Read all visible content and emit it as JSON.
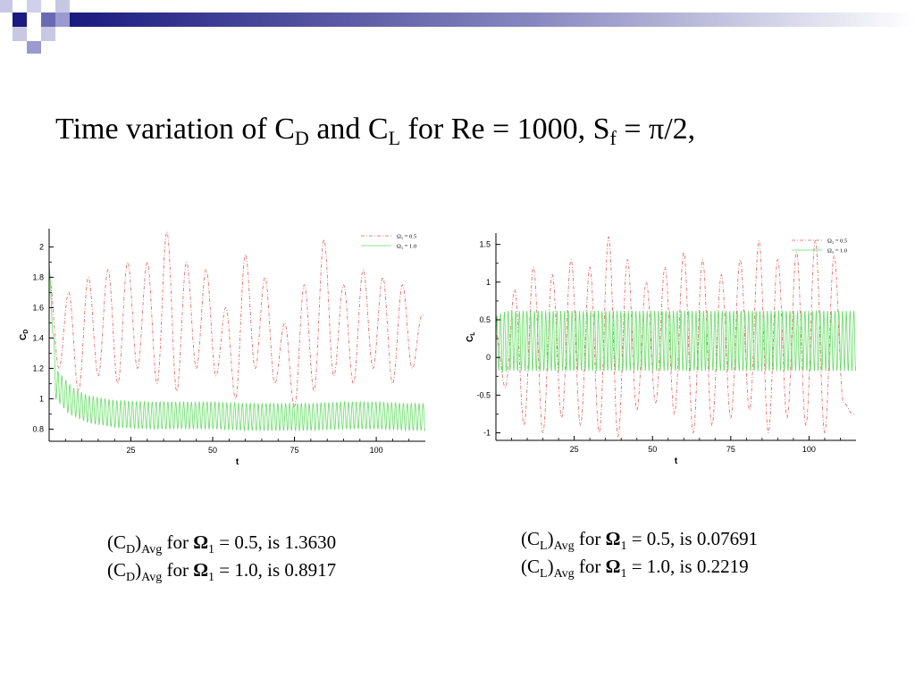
{
  "title": {
    "prefix": "Time variation of ",
    "cd": "C",
    "cd_sub": "D",
    "and": " and C",
    "cl_sub": "L",
    "for_re": " for Re = 1000, S",
    "sf_sub": "f",
    "suffix": " = π/2,"
  },
  "stats": {
    "cd": [
      {
        "open": "(C",
        "sub1": "D",
        "close": ")",
        "sub2": "Avg",
        "for": " for ",
        "omega": "Ω",
        "osub": "1",
        "rest": " = 0.5, is 1.3630"
      },
      {
        "open": "(C",
        "sub1": "D",
        "close": ")",
        "sub2": "Avg",
        "for": " for ",
        "omega": "Ω",
        "osub": "1",
        "rest": " = 1.0, is 0.8917"
      }
    ],
    "cl": [
      {
        "open": "(C",
        "sub1": "L",
        "close": ")",
        "sub2": "Avg",
        "for": " for ",
        "omega": "Ω",
        "osub": "1",
        "rest": " = 0.5, is 0.07691"
      },
      {
        "open": "(C",
        "sub1": "L",
        "close": ")",
        "sub2": "Avg",
        "for": " for ",
        "omega": "Ω",
        "osub": "1",
        "rest": " = 1.0, is 0.2219"
      }
    ]
  },
  "colors": {
    "series1": "#e06060",
    "series2": "#66dd66",
    "deco_dark": "#1a1a80",
    "deco_light": "#9a9ad0"
  },
  "chart_data": [
    {
      "type": "line",
      "xlabel": "t",
      "ylabel": "C",
      "ylabel_sub": "D",
      "xlim": [
        0,
        115
      ],
      "ylim": [
        0.72,
        2.12
      ],
      "xticks": [
        25,
        50,
        75,
        100
      ],
      "yticks": [
        0.8,
        1,
        1.2,
        1.4,
        1.6,
        1.8,
        2
      ],
      "xtick_labels": [
        "25",
        "50",
        "75",
        "100"
      ],
      "ytick_labels": [
        "0.8",
        "1",
        "1.2",
        "1.4",
        "1.6",
        "1.8",
        "2"
      ],
      "legend_position": "top-right",
      "series": [
        {
          "name_prefix": "Ω",
          "name_sub": "1",
          "name_suffix": " = 0.5",
          "style": "dashdot",
          "x": [
            0,
            3,
            6,
            9,
            12,
            15,
            18,
            21,
            24,
            27,
            30,
            33,
            36,
            39,
            42,
            45,
            48,
            51,
            54,
            57,
            60,
            63,
            66,
            69,
            72,
            75,
            78,
            81,
            84,
            87,
            90,
            93,
            96,
            99,
            102,
            105,
            108,
            111,
            114
          ],
          "y": [
            1.8,
            1.2,
            1.7,
            1.05,
            1.8,
            1.15,
            1.85,
            1.1,
            1.9,
            1.2,
            1.9,
            1.1,
            2.1,
            1.05,
            1.9,
            1.2,
            1.85,
            1.15,
            1.6,
            1.0,
            1.95,
            1.2,
            1.8,
            1.1,
            1.5,
            0.95,
            1.75,
            1.05,
            2.05,
            1.15,
            1.75,
            1.1,
            1.85,
            1.2,
            1.8,
            1.1,
            1.75,
            1.2,
            1.55
          ]
        },
        {
          "name_prefix": "Ω",
          "name_sub": "1",
          "name_suffix": " = 1.0",
          "style": "solid",
          "x": [
            0,
            2,
            4,
            6,
            8,
            10,
            12,
            15,
            20,
            30,
            40,
            50,
            60,
            70,
            80,
            90,
            100,
            110,
            114
          ],
          "y": [
            1.9,
            1.1,
            1.05,
            1.0,
            0.97,
            0.95,
            0.93,
            0.92,
            0.9,
            0.89,
            0.89,
            0.89,
            0.88,
            0.88,
            0.88,
            0.89,
            0.89,
            0.88,
            0.88
          ],
          "amplitude": [
            0,
            0.1,
            0.1,
            0.1,
            0.09,
            0.09,
            0.09,
            0.09,
            0.09,
            0.09,
            0.09,
            0.09,
            0.09,
            0.09,
            0.09,
            0.09,
            0.09,
            0.09,
            0.09
          ],
          "period": 1.2
        }
      ]
    },
    {
      "type": "line",
      "xlabel": "t",
      "ylabel": "C",
      "ylabel_sub": "L",
      "xlim": [
        0,
        115
      ],
      "ylim": [
        -1.1,
        1.65
      ],
      "xticks": [
        25,
        50,
        75,
        100
      ],
      "yticks": [
        -1,
        -0.5,
        0,
        0.5,
        1,
        1.5
      ],
      "xtick_labels": [
        "25",
        "50",
        "75",
        "100"
      ],
      "ytick_labels": [
        "-1",
        "-0.5",
        "0",
        "0.5",
        "1",
        "1.5"
      ],
      "legend_position": "top-right",
      "series": [
        {
          "name_prefix": "Ω",
          "name_sub": "1",
          "name_suffix": " = 0.5",
          "style": "dashdot",
          "x": [
            0,
            3,
            6,
            9,
            12,
            15,
            18,
            21,
            24,
            27,
            30,
            33,
            36,
            39,
            42,
            45,
            48,
            51,
            54,
            57,
            60,
            63,
            66,
            69,
            72,
            75,
            78,
            81,
            84,
            87,
            90,
            93,
            96,
            99,
            102,
            105,
            108,
            111,
            114
          ],
          "y": [
            0.3,
            -0.4,
            0.9,
            -0.9,
            1.2,
            -1.0,
            1.1,
            -0.8,
            1.3,
            -0.9,
            1.2,
            -1.0,
            1.6,
            -1.05,
            1.3,
            -0.7,
            1.0,
            -0.6,
            1.2,
            -0.75,
            1.4,
            -1.0,
            1.3,
            -0.9,
            1.1,
            -0.8,
            1.3,
            -0.7,
            1.55,
            -1.0,
            1.3,
            -0.8,
            1.4,
            -0.9,
            1.55,
            -1.0,
            1.35,
            -0.6,
            -0.75
          ]
        },
        {
          "name_prefix": "Ω",
          "name_sub": "1",
          "name_suffix": " = 1.0",
          "style": "solid",
          "x": [
            0,
            2,
            4,
            6,
            8,
            10,
            15,
            20,
            30,
            40,
            50,
            60,
            70,
            80,
            90,
            100,
            110,
            114
          ],
          "y": [
            0.2,
            0.2,
            0.22,
            0.22,
            0.22,
            0.22,
            0.22,
            0.22,
            0.22,
            0.22,
            0.22,
            0.22,
            0.22,
            0.22,
            0.22,
            0.22,
            0.22,
            0.22
          ],
          "amplitude": [
            0.35,
            0.4,
            0.4,
            0.4,
            0.4,
            0.4,
            0.4,
            0.4,
            0.4,
            0.4,
            0.4,
            0.4,
            0.4,
            0.4,
            0.4,
            0.4,
            0.4,
            0.4
          ],
          "period": 1.2
        }
      ]
    }
  ]
}
